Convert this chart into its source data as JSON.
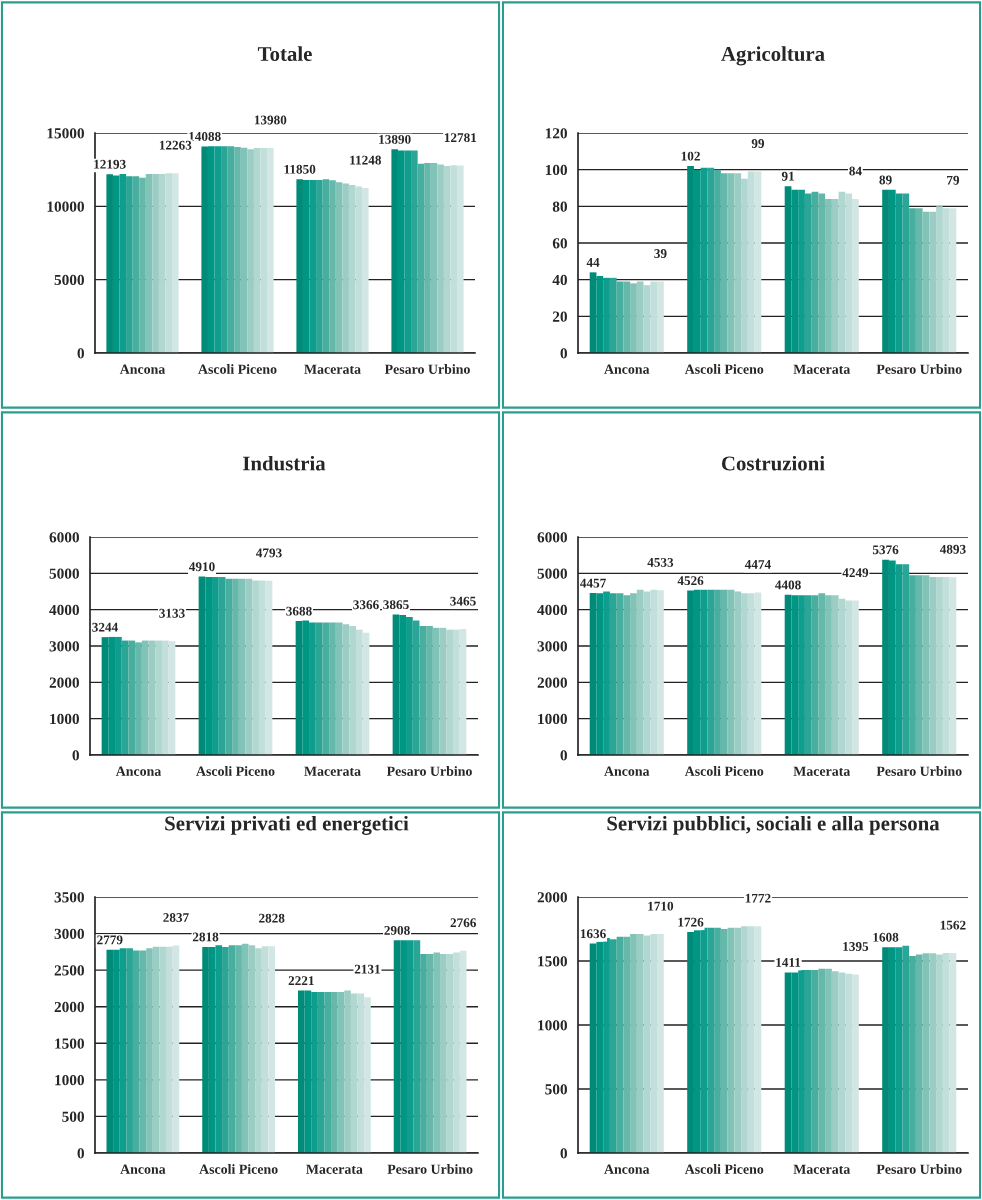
{
  "chart_data": [
    {
      "type": "bar",
      "title": "Totale",
      "categories": [
        "Ancona",
        "Ascoli Piceno",
        "Macerata",
        "Pesaro Urbino"
      ],
      "ylim": [
        0,
        15000
      ],
      "yticks": [
        0,
        5000,
        10000,
        15000
      ],
      "grid": "y",
      "series": [
        {
          "color": "#008b78",
          "values": [
            12193,
            14088,
            11850,
            13890
          ],
          "value_labels": [
            "12193",
            "14088",
            "11850",
            "13890"
          ]
        },
        {
          "color": "#009684",
          "values": [
            12100,
            14100,
            11800,
            13800
          ]
        },
        {
          "color": "#0f9e8d",
          "values": [
            12200,
            14100,
            11800,
            13800
          ]
        },
        {
          "color": "#2aa596",
          "values": [
            12050,
            14100,
            11800,
            13800
          ]
        },
        {
          "color": "#48ae9f",
          "values": [
            12050,
            14100,
            11850,
            12900
          ]
        },
        {
          "color": "#66b8ab",
          "values": [
            11950,
            14050,
            11780,
            12950
          ]
        },
        {
          "color": "#82c3b8",
          "values": [
            12200,
            14000,
            11650,
            12950
          ]
        },
        {
          "color": "#9ccdc5",
          "values": [
            12200,
            13900,
            11550,
            12850
          ]
        },
        {
          "color": "#b1d7d1",
          "values": [
            12200,
            13980,
            11450,
            12750
          ]
        },
        {
          "color": "#c2dfdb",
          "values": [
            12250,
            13980,
            11350,
            12800
          ]
        },
        {
          "color": "#d2e7e4",
          "values": [
            12263,
            13980,
            11248,
            12781
          ],
          "value_labels": [
            "12263",
            "13980",
            "11248",
            "12781"
          ]
        }
      ]
    },
    {
      "type": "bar",
      "title": "Agricoltura",
      "categories": [
        "Ancona",
        "Ascoli Piceno",
        "Macerata",
        "Pesaro Urbino"
      ],
      "ylim": [
        0,
        120
      ],
      "yticks": [
        0,
        20,
        40,
        60,
        80,
        100,
        120
      ],
      "grid": "y",
      "series": [
        {
          "color": "#008b78",
          "values": [
            44,
            102,
            91,
            89
          ],
          "value_labels": [
            "44",
            "102",
            "91",
            "89"
          ]
        },
        {
          "color": "#009684",
          "values": [
            42,
            100,
            89,
            89
          ]
        },
        {
          "color": "#0f9e8d",
          "values": [
            41,
            101,
            89,
            87
          ]
        },
        {
          "color": "#2aa596",
          "values": [
            41,
            101,
            87,
            87
          ]
        },
        {
          "color": "#48ae9f",
          "values": [
            39,
            100,
            88,
            79
          ]
        },
        {
          "color": "#66b8ab",
          "values": [
            39,
            98,
            87,
            79
          ]
        },
        {
          "color": "#82c3b8",
          "values": [
            38,
            98,
            84,
            77
          ]
        },
        {
          "color": "#9ccdc5",
          "values": [
            39,
            98,
            84,
            77
          ]
        },
        {
          "color": "#b1d7d1",
          "values": [
            37,
            95,
            88,
            80
          ]
        },
        {
          "color": "#c2dfdb",
          "values": [
            39,
            99,
            87,
            79
          ]
        },
        {
          "color": "#d2e7e4",
          "values": [
            39,
            99,
            84,
            79
          ],
          "value_labels": [
            "39",
            "99",
            "84",
            "79"
          ]
        }
      ]
    },
    {
      "type": "bar",
      "title": "Industria",
      "categories": [
        "Ancona",
        "Ascoli Piceno",
        "Macerata",
        "Pesaro Urbino"
      ],
      "ylim": [
        0,
        6000
      ],
      "yticks": [
        0,
        1000,
        2000,
        3000,
        4000,
        5000,
        6000
      ],
      "grid": "y",
      "series": [
        {
          "color": "#008b78",
          "values": [
            3244,
            4910,
            3688,
            3865
          ],
          "value_labels": [
            "3244",
            "4910",
            "3688",
            "3865"
          ]
        },
        {
          "color": "#009684",
          "values": [
            3250,
            4900,
            3700,
            3850
          ]
        },
        {
          "color": "#0f9e8d",
          "values": [
            3250,
            4900,
            3650,
            3800
          ]
        },
        {
          "color": "#2aa596",
          "values": [
            3150,
            4900,
            3650,
            3700
          ]
        },
        {
          "color": "#48ae9f",
          "values": [
            3150,
            4850,
            3650,
            3550
          ]
        },
        {
          "color": "#66b8ab",
          "values": [
            3100,
            4850,
            3650,
            3550
          ]
        },
        {
          "color": "#82c3b8",
          "values": [
            3150,
            4850,
            3650,
            3500
          ]
        },
        {
          "color": "#9ccdc5",
          "values": [
            3150,
            4850,
            3600,
            3500
          ]
        },
        {
          "color": "#b1d7d1",
          "values": [
            3150,
            4800,
            3550,
            3450
          ]
        },
        {
          "color": "#c2dfdb",
          "values": [
            3150,
            4800,
            3450,
            3450
          ]
        },
        {
          "color": "#d2e7e4",
          "values": [
            3133,
            4793,
            3366,
            3465
          ],
          "value_labels": [
            "3133",
            "4793",
            "3366",
            "3465"
          ]
        }
      ]
    },
    {
      "type": "bar",
      "title": "Costruzioni",
      "categories": [
        "Ancona",
        "Ascoli Piceno",
        "Macerata",
        "Pesaro Urbino"
      ],
      "ylim": [
        0,
        6000
      ],
      "yticks": [
        0,
        1000,
        2000,
        3000,
        4000,
        5000,
        6000
      ],
      "grid": "y",
      "series": [
        {
          "color": "#008b78",
          "values": [
            4457,
            4526,
            4408,
            5376
          ],
          "value_labels": [
            "4457",
            "4526",
            "4408",
            "5376"
          ]
        },
        {
          "color": "#009684",
          "values": [
            4450,
            4550,
            4400,
            5350
          ]
        },
        {
          "color": "#0f9e8d",
          "values": [
            4500,
            4550,
            4400,
            5250
          ]
        },
        {
          "color": "#2aa596",
          "values": [
            4450,
            4550,
            4400,
            5250
          ]
        },
        {
          "color": "#48ae9f",
          "values": [
            4450,
            4550,
            4400,
            4950
          ]
        },
        {
          "color": "#66b8ab",
          "values": [
            4400,
            4550,
            4450,
            4950
          ]
        },
        {
          "color": "#82c3b8",
          "values": [
            4450,
            4550,
            4400,
            4950
          ]
        },
        {
          "color": "#9ccdc5",
          "values": [
            4550,
            4500,
            4400,
            4900
          ]
        },
        {
          "color": "#b1d7d1",
          "values": [
            4500,
            4450,
            4300,
            4900
          ]
        },
        {
          "color": "#c2dfdb",
          "values": [
            4550,
            4450,
            4250,
            4900
          ]
        },
        {
          "color": "#d2e7e4",
          "values": [
            4533,
            4474,
            4249,
            4893
          ],
          "value_labels": [
            "4533",
            "4474",
            "4249",
            "4893"
          ]
        }
      ]
    },
    {
      "type": "bar",
      "title": "Servizi privati ed energetici",
      "categories": [
        "Ancona",
        "Ascoli Piceno",
        "Macerata",
        "Pesaro Urbino"
      ],
      "ylim": [
        0,
        3500
      ],
      "yticks": [
        0,
        500,
        1000,
        1500,
        2000,
        2500,
        3000,
        3500
      ],
      "grid": "y",
      "series": [
        {
          "color": "#008b78",
          "values": [
            2779,
            2818,
            2221,
            2908
          ],
          "value_labels": [
            "2779",
            "2818",
            "2221",
            "2908"
          ]
        },
        {
          "color": "#009684",
          "values": [
            2779,
            2818,
            2221,
            2908
          ]
        },
        {
          "color": "#0f9e8d",
          "values": [
            2800,
            2840,
            2200,
            2908
          ]
        },
        {
          "color": "#2aa596",
          "values": [
            2800,
            2818,
            2200,
            2908
          ]
        },
        {
          "color": "#48ae9f",
          "values": [
            2770,
            2840,
            2200,
            2720
          ]
        },
        {
          "color": "#66b8ab",
          "values": [
            2770,
            2840,
            2200,
            2720
          ]
        },
        {
          "color": "#82c3b8",
          "values": [
            2800,
            2860,
            2200,
            2740
          ]
        },
        {
          "color": "#9ccdc5",
          "values": [
            2820,
            2840,
            2221,
            2720
          ]
        },
        {
          "color": "#b1d7d1",
          "values": [
            2820,
            2800,
            2180,
            2720
          ]
        },
        {
          "color": "#c2dfdb",
          "values": [
            2820,
            2828,
            2180,
            2740
          ]
        },
        {
          "color": "#d2e7e4",
          "values": [
            2837,
            2828,
            2131,
            2766
          ],
          "value_labels": [
            "2837",
            "2828",
            "2131",
            "2766"
          ]
        }
      ]
    },
    {
      "type": "bar",
      "title": "Servizi pubblici, sociali e alla persona",
      "categories": [
        "Ancona",
        "Ascoli Piceno",
        "Macerata",
        "Pesaro Urbino"
      ],
      "ylim": [
        0,
        2000
      ],
      "yticks": [
        0,
        500,
        1000,
        1500,
        2000
      ],
      "grid": "y",
      "series": [
        {
          "color": "#008b78",
          "values": [
            1636,
            1726,
            1411,
            1608
          ],
          "value_labels": [
            "1636",
            "1726",
            "1411",
            "1608"
          ]
        },
        {
          "color": "#009684",
          "values": [
            1650,
            1740,
            1411,
            1608
          ]
        },
        {
          "color": "#0f9e8d",
          "values": [
            1680,
            1760,
            1430,
            1608
          ]
        },
        {
          "color": "#2aa596",
          "values": [
            1670,
            1760,
            1430,
            1620
          ]
        },
        {
          "color": "#48ae9f",
          "values": [
            1690,
            1760,
            1430,
            1540
          ]
        },
        {
          "color": "#66b8ab",
          "values": [
            1690,
            1750,
            1440,
            1550
          ]
        },
        {
          "color": "#82c3b8",
          "values": [
            1710,
            1760,
            1440,
            1560
          ]
        },
        {
          "color": "#9ccdc5",
          "values": [
            1710,
            1760,
            1420,
            1560
          ]
        },
        {
          "color": "#b1d7d1",
          "values": [
            1700,
            1772,
            1411,
            1550
          ]
        },
        {
          "color": "#c2dfdb",
          "values": [
            1710,
            1772,
            1400,
            1562
          ]
        },
        {
          "color": "#d2e7e4",
          "values": [
            1710,
            1772,
            1395,
            1562
          ],
          "value_labels": [
            "1710",
            "1772",
            "1395",
            "1562"
          ]
        }
      ]
    }
  ]
}
